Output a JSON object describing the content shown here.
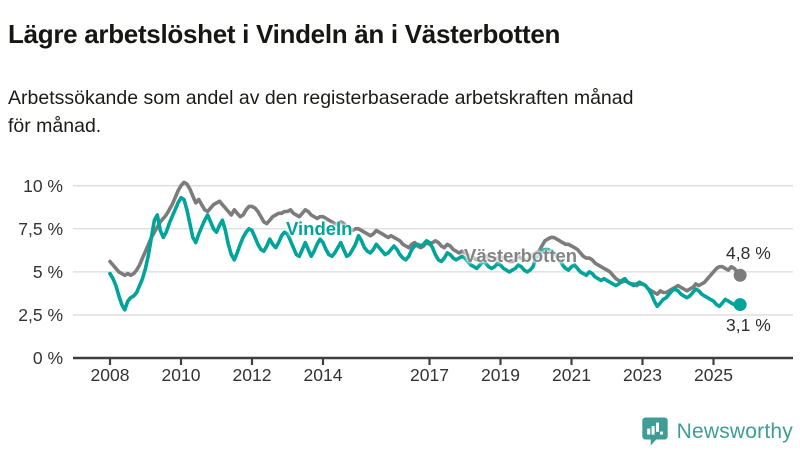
{
  "header": {
    "title": "Lägre arbetslöshet i Vindeln än i Västerbotten",
    "subtitle_lines": [
      "Arbetssökande som andel av den registerbaserade arbetskraften månad",
      "för månad."
    ]
  },
  "chart_data": {
    "type": "line",
    "title": "Lägre arbetslöshet i Vindeln än i Västerbotten",
    "xlabel": "",
    "ylabel": "",
    "unit": "%",
    "frequency": "monthly",
    "x_start": "2008-01",
    "x_end": "2025-10",
    "ylim": [
      0,
      10.5
    ],
    "grid": "horizontal",
    "grid_color": "#dbdbdb",
    "axis_color": "#3f3f3f",
    "tick_label_color": "#333333",
    "yticks": [
      {
        "value": 0,
        "label": "0 %"
      },
      {
        "value": 2.5,
        "label": "2,5 %"
      },
      {
        "value": 5,
        "label": "5 %"
      },
      {
        "value": 7.5,
        "label": "7,5 %"
      },
      {
        "value": 10,
        "label": "10 %"
      }
    ],
    "xticks": [
      {
        "value": 2008,
        "label": "2008"
      },
      {
        "value": 2010,
        "label": "2010"
      },
      {
        "value": 2012,
        "label": "2012"
      },
      {
        "value": 2014,
        "label": "2014"
      },
      {
        "value": 2017,
        "label": "2017"
      },
      {
        "value": 2019,
        "label": "2019"
      },
      {
        "value": 2021,
        "label": "2021"
      },
      {
        "value": 2023,
        "label": "2023"
      },
      {
        "value": 2025,
        "label": "2025"
      }
    ],
    "series": [
      {
        "name": "Västerbotten",
        "color": "#7c7c7c",
        "end_label": "4,8 %",
        "end_value": 4.8,
        "values": [
          5.6,
          5.4,
          5.2,
          5.0,
          4.9,
          4.8,
          4.9,
          4.8,
          4.9,
          5.1,
          5.4,
          5.8,
          6.2,
          6.6,
          7.0,
          7.3,
          7.6,
          7.9,
          8.1,
          8.3,
          8.6,
          8.9,
          9.3,
          9.7,
          10.0,
          10.2,
          10.1,
          9.8,
          9.4,
          9.0,
          9.2,
          8.9,
          8.6,
          8.5,
          8.7,
          8.9,
          9.0,
          9.1,
          8.9,
          8.7,
          8.5,
          8.3,
          8.6,
          8.4,
          8.2,
          8.3,
          8.6,
          8.8,
          8.8,
          8.7,
          8.5,
          8.2,
          7.9,
          7.8,
          8.0,
          8.2,
          8.3,
          8.4,
          8.4,
          8.5,
          8.5,
          8.6,
          8.4,
          8.3,
          8.2,
          8.4,
          8.6,
          8.5,
          8.3,
          8.2,
          8.1,
          8.2,
          8.2,
          8.1,
          8.0,
          7.9,
          7.8,
          7.7,
          7.9,
          7.8,
          7.6,
          7.5,
          7.4,
          7.5,
          7.5,
          7.4,
          7.3,
          7.2,
          7.1,
          7.2,
          7.4,
          7.3,
          7.2,
          7.1,
          7.0,
          7.1,
          7.0,
          6.9,
          6.8,
          6.6,
          6.5,
          6.4,
          6.6,
          6.7,
          6.5,
          6.4,
          6.5,
          6.7,
          6.6,
          6.7,
          6.8,
          6.7,
          6.5,
          6.4,
          6.6,
          6.5,
          6.3,
          6.2,
          6.1,
          6.2,
          6.1,
          6.0,
          5.9,
          5.8,
          5.7,
          5.8,
          6.0,
          5.9,
          5.8,
          5.7,
          5.7,
          5.8,
          5.9,
          5.8,
          5.7,
          5.6,
          5.6,
          5.7,
          5.9,
          5.8,
          5.7,
          5.7,
          5.8,
          6.0,
          6.1,
          6.2,
          6.5,
          6.8,
          6.9,
          7.0,
          7.0,
          6.9,
          6.8,
          6.7,
          6.6,
          6.6,
          6.5,
          6.4,
          6.3,
          6.1,
          5.9,
          5.8,
          5.8,
          5.7,
          5.5,
          5.4,
          5.3,
          5.2,
          5.1,
          5.0,
          4.8,
          4.6,
          4.5,
          4.4,
          4.5,
          4.4,
          4.3,
          4.3,
          4.2,
          4.3,
          4.3,
          4.2,
          4.0,
          3.9,
          3.8,
          3.7,
          3.9,
          3.8,
          3.8,
          3.9,
          4.0,
          4.1,
          4.2,
          4.1,
          4.0,
          3.9,
          4.0,
          4.1,
          4.3,
          4.2,
          4.3,
          4.4,
          4.6,
          4.8,
          5.0,
          5.2,
          5.3,
          5.3,
          5.2,
          5.1,
          5.3,
          5.2,
          5.0,
          4.8
        ]
      },
      {
        "name": "Vindeln",
        "color": "#00a49a",
        "end_label": "3,1 %",
        "end_value": 3.1,
        "values": [
          4.9,
          4.6,
          4.2,
          3.6,
          3.1,
          2.8,
          3.3,
          3.5,
          3.6,
          3.8,
          4.2,
          4.6,
          5.2,
          6.0,
          7.0,
          8.0,
          8.3,
          7.4,
          7.0,
          7.3,
          7.8,
          8.2,
          8.6,
          9.0,
          9.3,
          9.2,
          8.6,
          7.8,
          7.0,
          6.7,
          7.2,
          7.6,
          8.0,
          8.3,
          7.9,
          7.5,
          7.3,
          7.7,
          8.0,
          7.4,
          6.6,
          6.0,
          5.7,
          6.1,
          6.6,
          7.0,
          7.3,
          7.5,
          7.4,
          7.0,
          6.6,
          6.3,
          6.2,
          6.5,
          6.9,
          6.6,
          6.4,
          6.7,
          7.1,
          7.3,
          7.2,
          6.8,
          6.4,
          6.0,
          5.9,
          6.3,
          6.7,
          6.3,
          5.9,
          6.2,
          6.6,
          6.9,
          6.7,
          6.3,
          6.0,
          5.9,
          6.1,
          6.4,
          6.7,
          6.3,
          5.9,
          6.0,
          6.3,
          6.6,
          7.1,
          6.8,
          6.4,
          6.2,
          6.1,
          6.3,
          6.6,
          6.4,
          6.2,
          6.0,
          6.1,
          6.3,
          6.5,
          6.3,
          6.0,
          5.8,
          5.7,
          5.9,
          6.3,
          6.5,
          6.6,
          6.5,
          6.6,
          6.8,
          6.7,
          6.4,
          6.0,
          5.7,
          5.6,
          5.8,
          6.1,
          6.0,
          5.8,
          5.7,
          5.8,
          5.9,
          5.8,
          5.6,
          5.4,
          5.3,
          5.2,
          5.4,
          5.6,
          5.5,
          5.3,
          5.2,
          5.3,
          5.5,
          5.4,
          5.2,
          5.1,
          5.0,
          5.1,
          5.2,
          5.4,
          5.3,
          5.1,
          5.0,
          5.1,
          5.3,
          5.8,
          6.0,
          6.2,
          6.3,
          6.3,
          6.2,
          6.1,
          5.9,
          5.7,
          5.4,
          5.2,
          5.1,
          5.3,
          5.4,
          5.2,
          5.0,
          4.9,
          4.8,
          5.0,
          4.9,
          4.7,
          4.6,
          4.5,
          4.6,
          4.5,
          4.4,
          4.3,
          4.2,
          4.3,
          4.5,
          4.6,
          4.4,
          4.3,
          4.2,
          4.3,
          4.4,
          4.3,
          4.2,
          4.0,
          3.7,
          3.3,
          3.0,
          3.2,
          3.4,
          3.5,
          3.7,
          3.9,
          4.0,
          3.9,
          3.7,
          3.6,
          3.5,
          3.6,
          3.8,
          4.0,
          3.9,
          3.7,
          3.6,
          3.5,
          3.4,
          3.3,
          3.1,
          3.0,
          3.2,
          3.4,
          3.3,
          3.2,
          3.1,
          3.0,
          3.1
        ]
      }
    ]
  },
  "footer": {
    "brand": "Newsworthy",
    "brand_color": "#3f9d95",
    "logo_icon": "speech-bubble-bar-chart-icon"
  }
}
